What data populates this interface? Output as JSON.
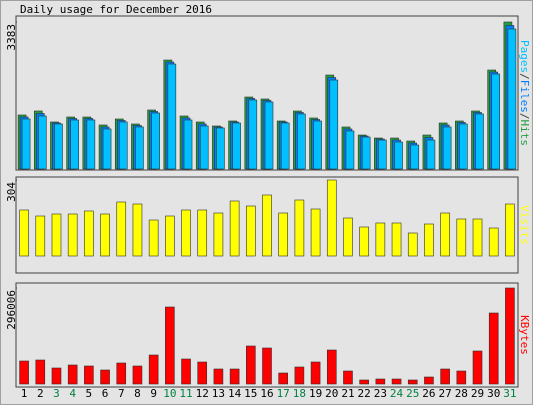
{
  "title": "Daily usage for December 2016",
  "categories": [
    "1",
    "2",
    "3",
    "4",
    "5",
    "6",
    "7",
    "8",
    "9",
    "10",
    "11",
    "12",
    "13",
    "14",
    "15",
    "16",
    "17",
    "18",
    "19",
    "20",
    "21",
    "22",
    "23",
    "24",
    "25",
    "26",
    "27",
    "28",
    "29",
    "30",
    "31"
  ],
  "label_colors": [
    "#000000",
    "#000000",
    "#008040",
    "#008040",
    "#000000",
    "#000000",
    "#000000",
    "#000000",
    "#000000",
    "#008040",
    "#008040",
    "#000000",
    "#000000",
    "#000000",
    "#000000",
    "#000000",
    "#008040",
    "#008040",
    "#000000",
    "#000000",
    "#000000",
    "#000000",
    "#000000",
    "#008040",
    "#008040",
    "#000000",
    "#000000",
    "#000000",
    "#000000",
    "#000000",
    "#008040"
  ],
  "chart_data": [
    {
      "type": "bar",
      "ylim": [
        0,
        3383
      ],
      "yticks": [
        3383
      ],
      "legend_separator": "/",
      "legend_order": [
        2,
        1,
        0
      ],
      "series": [
        {
          "name": "Hits",
          "color": "#20a040",
          "values": [
            1243,
            1335,
            1082,
            1197,
            1197,
            1013,
            1151,
            1036,
            1358,
            2508,
            1220,
            1082,
            990,
            1105,
            1657,
            1611,
            1105,
            1335,
            1174,
            2163,
            967,
            782,
            713,
            713,
            644,
            782,
            1059,
            1105,
            1335,
            2278,
            3383
          ]
        },
        {
          "name": "Files",
          "color": "#0080ff",
          "values": [
            1197,
            1278,
            1059,
            1163,
            1163,
            967,
            1117,
            1002,
            1324,
            2462,
            1174,
            1036,
            967,
            1082,
            1623,
            1577,
            1082,
            1301,
            1140,
            2106,
            921,
            759,
            690,
            667,
            598,
            725,
            1013,
            1071,
            1301,
            2232,
            3303
          ]
        },
        {
          "name": "Pages",
          "color": "#00c0ff",
          "values": [
            1151,
            1220,
            1036,
            1128,
            1128,
            921,
            1082,
            967,
            1289,
            2416,
            1128,
            990,
            944,
            1059,
            1588,
            1542,
            1059,
            1266,
            1105,
            2048,
            875,
            736,
            667,
            621,
            552,
            667,
            967,
            1036,
            1266,
            2186,
            3222
          ]
        }
      ]
    },
    {
      "type": "bar",
      "ylim": [
        0,
        304
      ],
      "yticks": [
        304
      ],
      "series": [
        {
          "name": "Visits",
          "color": "#ffff00",
          "values": [
            184,
            160,
            168,
            168,
            180,
            168,
            216,
            208,
            144,
            160,
            184,
            184,
            172,
            220,
            200,
            244,
            172,
            224,
            188,
            304,
            152,
            116,
            132,
            132,
            92,
            128,
            172,
            148,
            148,
            112,
            208
          ]
        }
      ]
    },
    {
      "type": "bar",
      "ylim": [
        0,
        296006
      ],
      "yticks": [
        296006
      ],
      "series": [
        {
          "name": "KBytes",
          "color": "#ff0000",
          "values": [
            70919,
            74002,
            49334,
            58584,
            55501,
            43168,
            64751,
            55501,
            89418,
            237421,
            77085,
            67835,
            46251,
            46251,
            117169,
            111002,
            33917,
            52418,
            67835,
            104835,
            40084,
            12333,
            15417,
            15417,
            12333,
            21584,
            46251,
            40084,
            101752,
            218921,
            296006
          ]
        }
      ]
    }
  ]
}
